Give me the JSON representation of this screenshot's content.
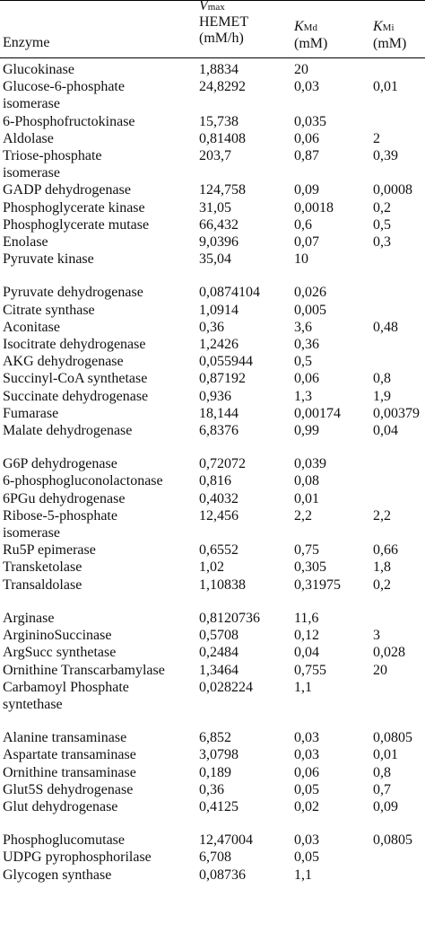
{
  "header": {
    "enzyme": "Enzyme",
    "vmax_symbol": "V",
    "vmax_sub": "max",
    "vmax_line2": "HEMET",
    "vmax_unit": "(mM/h)",
    "kmd_symbol": "K",
    "kmd_sub": "Md",
    "kmd_unit": "(mM)",
    "kmi_symbol": "K",
    "kmi_sub": "Mi",
    "kmi_unit": "(mM)"
  },
  "rows": [
    {
      "name": [
        "Glucokinase"
      ],
      "vmax": "1,8834",
      "kmd": "20",
      "kmi": "",
      "gap": false
    },
    {
      "name": [
        "Glucose-6-phosphate",
        "isomerase"
      ],
      "vmax": "24,8292",
      "kmd": "0,03",
      "kmi": "0,01",
      "gap": false
    },
    {
      "name": [
        "6-Phosphofructokinase"
      ],
      "vmax": "15,738",
      "kmd": "0,035",
      "kmi": "",
      "gap": false
    },
    {
      "name": [
        "Aldolase"
      ],
      "vmax": "0,81408",
      "kmd": "0,06",
      "kmi": "2",
      "gap": false
    },
    {
      "name": [
        "Triose-phosphate",
        "isomerase"
      ],
      "vmax": "203,7",
      "kmd": "0,87",
      "kmi": "0,39",
      "gap": false
    },
    {
      "name": [
        "GADP dehydrogenase"
      ],
      "vmax": "124,758",
      "kmd": "0,09",
      "kmi": "0,0008",
      "gap": false
    },
    {
      "name": [
        "Phosphoglycerate kinase"
      ],
      "vmax": "31,05",
      "kmd": "0,0018",
      "kmi": "0,2",
      "gap": false
    },
    {
      "name": [
        "Phosphoglycerate mutase"
      ],
      "vmax": "66,432",
      "kmd": "0,6",
      "kmi": "0,5",
      "gap": false
    },
    {
      "name": [
        "Enolase"
      ],
      "vmax": "9,0396",
      "kmd": "0,07",
      "kmi": "0,3",
      "gap": false
    },
    {
      "name": [
        "Pyruvate kinase"
      ],
      "vmax": "35,04",
      "kmd": "10",
      "kmi": "",
      "gap": false
    },
    {
      "name": [
        "Pyruvate dehydrogenase"
      ],
      "vmax": "0,0874104",
      "kmd": "0,026",
      "kmi": "",
      "gap": true
    },
    {
      "name": [
        "Citrate synthase"
      ],
      "vmax": "1,0914",
      "kmd": "0,005",
      "kmi": "",
      "gap": false
    },
    {
      "name": [
        "Aconitase"
      ],
      "vmax": "0,36",
      "kmd": "3,6",
      "kmi": "0,48",
      "gap": false
    },
    {
      "name": [
        "Isocitrate dehydrogenase"
      ],
      "vmax": "1,2426",
      "kmd": "0,36",
      "kmi": "",
      "gap": false
    },
    {
      "name": [
        "AKG dehydrogenase"
      ],
      "vmax": "0,055944",
      "kmd": "0,5",
      "kmi": "",
      "gap": false
    },
    {
      "name": [
        "Succinyl-CoA synthetase"
      ],
      "vmax": "0,87192",
      "kmd": "0,06",
      "kmi": "0,8",
      "gap": false
    },
    {
      "name": [
        "Succinate dehydrogenase"
      ],
      "vmax": "0,936",
      "kmd": "1,3",
      "kmi": "1,9",
      "gap": false
    },
    {
      "name": [
        "Fumarase"
      ],
      "vmax": "18,144",
      "kmd": "0,00174",
      "kmi": "0,00379",
      "gap": false
    },
    {
      "name": [
        "Malate dehydrogenase"
      ],
      "vmax": "6,8376",
      "kmd": "0,99",
      "kmi": "0,04",
      "gap": false
    },
    {
      "name": [
        "G6P dehydrogenase"
      ],
      "vmax": "0,72072",
      "kmd": "0,039",
      "kmi": "",
      "gap": true
    },
    {
      "name": [
        "6-phosphogluconolactonase"
      ],
      "vmax": "0,816",
      "kmd": "0,08",
      "kmi": "",
      "gap": false
    },
    {
      "name": [
        "6PGu dehydrogenase"
      ],
      "vmax": "0,4032",
      "kmd": "0,01",
      "kmi": "",
      "gap": false
    },
    {
      "name": [
        "Ribose-5-phosphate",
        "isomerase"
      ],
      "vmax": "12,456",
      "kmd": "2,2",
      "kmi": "2,2",
      "gap": false
    },
    {
      "name": [
        "Ru5P epimerase"
      ],
      "vmax": "0,6552",
      "kmd": "0,75",
      "kmi": "0,66",
      "gap": false
    },
    {
      "name": [
        "Transketolase"
      ],
      "vmax": "1,02",
      "kmd": "0,305",
      "kmi": "1,8",
      "gap": false
    },
    {
      "name": [
        "Transaldolase"
      ],
      "vmax": "1,10838",
      "kmd": "0,31975",
      "kmi": "0,2",
      "gap": false
    },
    {
      "name": [
        "Arginase"
      ],
      "vmax": "0,8120736",
      "kmd": "11,6",
      "kmi": "",
      "gap": true
    },
    {
      "name": [
        "ArgininoSuccinase"
      ],
      "vmax": "0,5708",
      "kmd": "0,12",
      "kmi": "3",
      "gap": false
    },
    {
      "name": [
        "ArgSucc synthetase"
      ],
      "vmax": "0,2484",
      "kmd": "0,04",
      "kmi": "0,028",
      "gap": false
    },
    {
      "name": [
        "Ornithine Transcarbamylase"
      ],
      "vmax": "1,3464",
      "kmd": "0,755",
      "kmi": "20",
      "gap": false
    },
    {
      "name": [
        "Carbamoyl Phosphate",
        "syntethase"
      ],
      "vmax": "0,028224",
      "kmd": "1,1",
      "kmi": "",
      "gap": false
    },
    {
      "name": [
        "Alanine transaminase"
      ],
      "vmax": "6,852",
      "kmd": "0,03",
      "kmi": "0,0805",
      "gap": true
    },
    {
      "name": [
        "Aspartate transaminase"
      ],
      "vmax": "3,0798",
      "kmd": "0,03",
      "kmi": "0,01",
      "gap": false
    },
    {
      "name": [
        "Ornithine transaminase"
      ],
      "vmax": "0,189",
      "kmd": "0,06",
      "kmi": "0,8",
      "gap": false
    },
    {
      "name": [
        "Glut5S dehydrogenase"
      ],
      "vmax": "0,36",
      "kmd": "0,05",
      "kmi": "0,7",
      "gap": false
    },
    {
      "name": [
        "Glut dehydrogenase"
      ],
      "vmax": "0,4125",
      "kmd": "0,02",
      "kmi": "0,09",
      "gap": false
    },
    {
      "name": [
        "Phosphoglucomutase"
      ],
      "vmax": "12,47004",
      "kmd": "0,03",
      "kmi": "0,0805",
      "gap": true
    },
    {
      "name": [
        "UDPG pyrophosphorilase"
      ],
      "vmax": "6,708",
      "kmd": "0,05",
      "kmi": "",
      "gap": false
    },
    {
      "name": [
        "Glycogen synthase"
      ],
      "vmax": "0,08736",
      "kmd": "1,1",
      "kmi": "",
      "gap": false
    }
  ]
}
